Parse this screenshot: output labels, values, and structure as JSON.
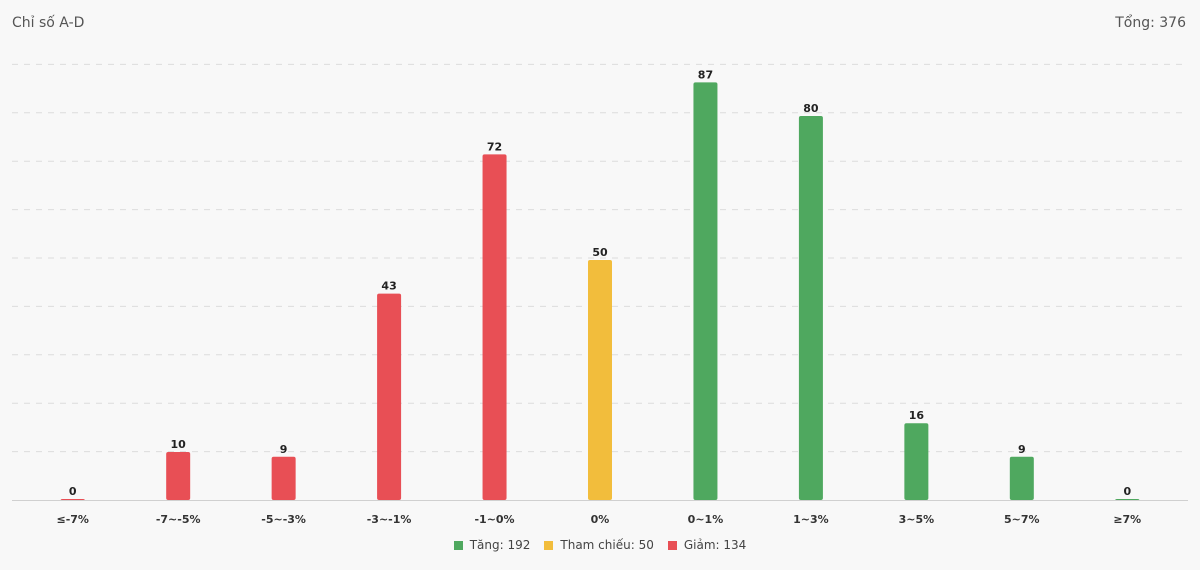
{
  "header": {
    "title": "Chỉ số A-D",
    "total_label": "Tổng: 376"
  },
  "colors": {
    "up": "#4fa85f",
    "ref": "#f2bd3c",
    "down": "#e84f55"
  },
  "chart_data": {
    "type": "bar",
    "categories": [
      "≤-7%",
      "-7~-5%",
      "-5~-3%",
      "-3~-1%",
      "-1~0%",
      "0%",
      "0~1%",
      "1~3%",
      "3~5%",
      "5~7%",
      "≥7%"
    ],
    "values": [
      0,
      10,
      9,
      43,
      72,
      50,
      87,
      80,
      16,
      9,
      0
    ],
    "groups": [
      "down",
      "down",
      "down",
      "down",
      "down",
      "ref",
      "up",
      "up",
      "up",
      "up",
      "up"
    ],
    "ylim": [
      0,
      90
    ],
    "gridlines": true,
    "data_labels": true,
    "legend_position": "bottom-center"
  },
  "legend": [
    {
      "key": "up",
      "label": "Tăng: 192"
    },
    {
      "key": "ref",
      "label": "Tham chiếu: 50"
    },
    {
      "key": "down",
      "label": "Giảm: 134"
    }
  ]
}
